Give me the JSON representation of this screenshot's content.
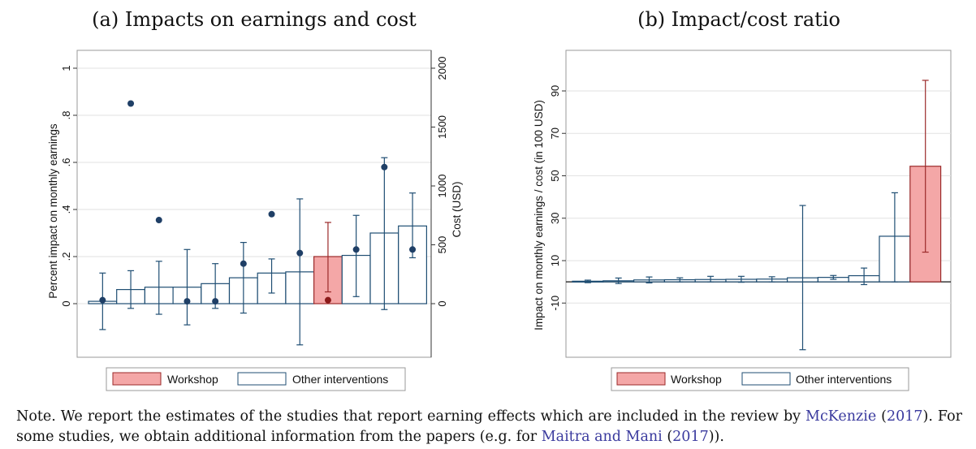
{
  "chart_data": [
    {
      "type": "bar",
      "title": "(a) Impacts on earnings and cost",
      "ylabel": "Percent impact on monthly earnings",
      "y2label": "Cost (USD)",
      "ylim": [
        -0.23,
        1.0
      ],
      "yticks": [
        "0",
        ".2",
        ".4",
        ".6",
        ".8",
        "1"
      ],
      "yticks_values": [
        0,
        0.2,
        0.4,
        0.6,
        0.8,
        1.0
      ],
      "y2lim": [
        0,
        2000
      ],
      "y2ticks": [
        "0",
        "500",
        "1000",
        "1500",
        "2000"
      ],
      "y2ticks_values": [
        0,
        500,
        1000,
        1500,
        2000
      ],
      "grid": true,
      "legend_position": "bottom",
      "series": [
        {
          "name": "Impact on earnings",
          "values": [
            0.01,
            0.06,
            0.07,
            0.07,
            0.085,
            0.11,
            0.13,
            0.135,
            0.2,
            0.205,
            0.3,
            0.33
          ],
          "ci_low": [
            -0.11,
            -0.02,
            -0.045,
            -0.09,
            -0.02,
            -0.04,
            0.045,
            -0.175,
            0.05,
            0.03,
            -0.025,
            0.195
          ],
          "ci_high": [
            0.13,
            0.14,
            0.18,
            0.23,
            0.17,
            0.26,
            0.19,
            0.445,
            0.345,
            0.375,
            0.62,
            0.47
          ],
          "group": [
            "other",
            "other",
            "other",
            "other",
            "other",
            "other",
            "other",
            "other",
            "workshop",
            "other",
            "other",
            "other"
          ]
        },
        {
          "name": "Cost (USD)",
          "axis": "right",
          "values": [
            30,
            1700,
            710,
            20,
            20,
            340,
            760,
            430,
            30,
            460,
            1160,
            460
          ]
        }
      ],
      "legend": [
        "Workshop",
        "Other interventions"
      ]
    },
    {
      "type": "bar",
      "title": "(b) Impact/cost ratio",
      "ylabel": "Impact on monthly earnings / cost (in 100 USD)",
      "ylim": [
        -33,
        105
      ],
      "yticks": [
        "-10",
        "10",
        "30",
        "50",
        "70",
        "90"
      ],
      "yticks_values": [
        -10,
        10,
        30,
        50,
        70,
        90
      ],
      "grid": true,
      "legend_position": "bottom",
      "series": [
        {
          "name": "Impact/cost ratio",
          "values": [
            0.3,
            0.5,
            0.9,
            1.0,
            1.1,
            1.2,
            1.3,
            1.9,
            2.1,
            2.9,
            21.5,
            54.5
          ],
          "ci_low": [
            -0.4,
            -0.8,
            -0.5,
            0,
            0,
            -0.2,
            0,
            -32,
            1.2,
            -1.3,
            0,
            14
          ],
          "ci_high": [
            0.8,
            1.8,
            2.3,
            1.9,
            2.6,
            2.6,
            2.4,
            36,
            3,
            6.5,
            42,
            95
          ],
          "group": [
            "other",
            "other",
            "other",
            "other",
            "other",
            "other",
            "other",
            "other",
            "other",
            "other",
            "other",
            "workshop"
          ]
        }
      ],
      "legend": [
        "Workshop",
        "Other interventions"
      ]
    }
  ],
  "colors": {
    "workshop_fill": "#f4a7a7",
    "workshop_stroke": "#9b2a2a",
    "other_stroke": "#1f4e73",
    "dot": "#1f3f66",
    "workshop_dot": "#8b1a1a",
    "grid": "#e2e2e2"
  },
  "note": {
    "text1": "Note.  We report the estimates of the studies that report earning effects which are included in the review by ",
    "cite1a": "McKenzie",
    "cite1b": "2017",
    "text2": "). For some studies, we obtain additional information from the papers (e.g. for ",
    "cite2a": "Maitra and Mani",
    "cite2b": "2017",
    "text3": "))."
  }
}
